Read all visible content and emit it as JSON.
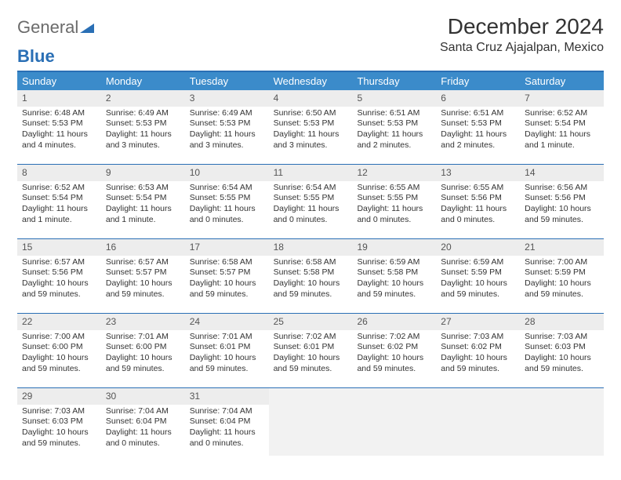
{
  "logo": {
    "text_gray": "General",
    "text_blue": "Blue"
  },
  "title": "December 2024",
  "location": "Santa Cruz Ajajalpan, Mexico",
  "colors": {
    "header_bg": "#3b8bca",
    "header_text": "#ffffff",
    "border": "#2a6fb5",
    "daynum_bg": "#ededed",
    "empty_bg": "#f2f2f2",
    "text": "#333333",
    "logo_gray": "#6b6b6b",
    "logo_blue": "#2a6fb5"
  },
  "day_headers": [
    "Sunday",
    "Monday",
    "Tuesday",
    "Wednesday",
    "Thursday",
    "Friday",
    "Saturday"
  ],
  "weeks": [
    [
      {
        "n": "1",
        "sr": "Sunrise: 6:48 AM",
        "ss": "Sunset: 5:53 PM",
        "dl": "Daylight: 11 hours and 4 minutes."
      },
      {
        "n": "2",
        "sr": "Sunrise: 6:49 AM",
        "ss": "Sunset: 5:53 PM",
        "dl": "Daylight: 11 hours and 3 minutes."
      },
      {
        "n": "3",
        "sr": "Sunrise: 6:49 AM",
        "ss": "Sunset: 5:53 PM",
        "dl": "Daylight: 11 hours and 3 minutes."
      },
      {
        "n": "4",
        "sr": "Sunrise: 6:50 AM",
        "ss": "Sunset: 5:53 PM",
        "dl": "Daylight: 11 hours and 3 minutes."
      },
      {
        "n": "5",
        "sr": "Sunrise: 6:51 AM",
        "ss": "Sunset: 5:53 PM",
        "dl": "Daylight: 11 hours and 2 minutes."
      },
      {
        "n": "6",
        "sr": "Sunrise: 6:51 AM",
        "ss": "Sunset: 5:53 PM",
        "dl": "Daylight: 11 hours and 2 minutes."
      },
      {
        "n": "7",
        "sr": "Sunrise: 6:52 AM",
        "ss": "Sunset: 5:54 PM",
        "dl": "Daylight: 11 hours and 1 minute."
      }
    ],
    [
      {
        "n": "8",
        "sr": "Sunrise: 6:52 AM",
        "ss": "Sunset: 5:54 PM",
        "dl": "Daylight: 11 hours and 1 minute."
      },
      {
        "n": "9",
        "sr": "Sunrise: 6:53 AM",
        "ss": "Sunset: 5:54 PM",
        "dl": "Daylight: 11 hours and 1 minute."
      },
      {
        "n": "10",
        "sr": "Sunrise: 6:54 AM",
        "ss": "Sunset: 5:55 PM",
        "dl": "Daylight: 11 hours and 0 minutes."
      },
      {
        "n": "11",
        "sr": "Sunrise: 6:54 AM",
        "ss": "Sunset: 5:55 PM",
        "dl": "Daylight: 11 hours and 0 minutes."
      },
      {
        "n": "12",
        "sr": "Sunrise: 6:55 AM",
        "ss": "Sunset: 5:55 PM",
        "dl": "Daylight: 11 hours and 0 minutes."
      },
      {
        "n": "13",
        "sr": "Sunrise: 6:55 AM",
        "ss": "Sunset: 5:56 PM",
        "dl": "Daylight: 11 hours and 0 minutes."
      },
      {
        "n": "14",
        "sr": "Sunrise: 6:56 AM",
        "ss": "Sunset: 5:56 PM",
        "dl": "Daylight: 10 hours and 59 minutes."
      }
    ],
    [
      {
        "n": "15",
        "sr": "Sunrise: 6:57 AM",
        "ss": "Sunset: 5:56 PM",
        "dl": "Daylight: 10 hours and 59 minutes."
      },
      {
        "n": "16",
        "sr": "Sunrise: 6:57 AM",
        "ss": "Sunset: 5:57 PM",
        "dl": "Daylight: 10 hours and 59 minutes."
      },
      {
        "n": "17",
        "sr": "Sunrise: 6:58 AM",
        "ss": "Sunset: 5:57 PM",
        "dl": "Daylight: 10 hours and 59 minutes."
      },
      {
        "n": "18",
        "sr": "Sunrise: 6:58 AM",
        "ss": "Sunset: 5:58 PM",
        "dl": "Daylight: 10 hours and 59 minutes."
      },
      {
        "n": "19",
        "sr": "Sunrise: 6:59 AM",
        "ss": "Sunset: 5:58 PM",
        "dl": "Daylight: 10 hours and 59 minutes."
      },
      {
        "n": "20",
        "sr": "Sunrise: 6:59 AM",
        "ss": "Sunset: 5:59 PM",
        "dl": "Daylight: 10 hours and 59 minutes."
      },
      {
        "n": "21",
        "sr": "Sunrise: 7:00 AM",
        "ss": "Sunset: 5:59 PM",
        "dl": "Daylight: 10 hours and 59 minutes."
      }
    ],
    [
      {
        "n": "22",
        "sr": "Sunrise: 7:00 AM",
        "ss": "Sunset: 6:00 PM",
        "dl": "Daylight: 10 hours and 59 minutes."
      },
      {
        "n": "23",
        "sr": "Sunrise: 7:01 AM",
        "ss": "Sunset: 6:00 PM",
        "dl": "Daylight: 10 hours and 59 minutes."
      },
      {
        "n": "24",
        "sr": "Sunrise: 7:01 AM",
        "ss": "Sunset: 6:01 PM",
        "dl": "Daylight: 10 hours and 59 minutes."
      },
      {
        "n": "25",
        "sr": "Sunrise: 7:02 AM",
        "ss": "Sunset: 6:01 PM",
        "dl": "Daylight: 10 hours and 59 minutes."
      },
      {
        "n": "26",
        "sr": "Sunrise: 7:02 AM",
        "ss": "Sunset: 6:02 PM",
        "dl": "Daylight: 10 hours and 59 minutes."
      },
      {
        "n": "27",
        "sr": "Sunrise: 7:03 AM",
        "ss": "Sunset: 6:02 PM",
        "dl": "Daylight: 10 hours and 59 minutes."
      },
      {
        "n": "28",
        "sr": "Sunrise: 7:03 AM",
        "ss": "Sunset: 6:03 PM",
        "dl": "Daylight: 10 hours and 59 minutes."
      }
    ],
    [
      {
        "n": "29",
        "sr": "Sunrise: 7:03 AM",
        "ss": "Sunset: 6:03 PM",
        "dl": "Daylight: 10 hours and 59 minutes."
      },
      {
        "n": "30",
        "sr": "Sunrise: 7:04 AM",
        "ss": "Sunset: 6:04 PM",
        "dl": "Daylight: 11 hours and 0 minutes."
      },
      {
        "n": "31",
        "sr": "Sunrise: 7:04 AM",
        "ss": "Sunset: 6:04 PM",
        "dl": "Daylight: 11 hours and 0 minutes."
      },
      null,
      null,
      null,
      null
    ]
  ]
}
